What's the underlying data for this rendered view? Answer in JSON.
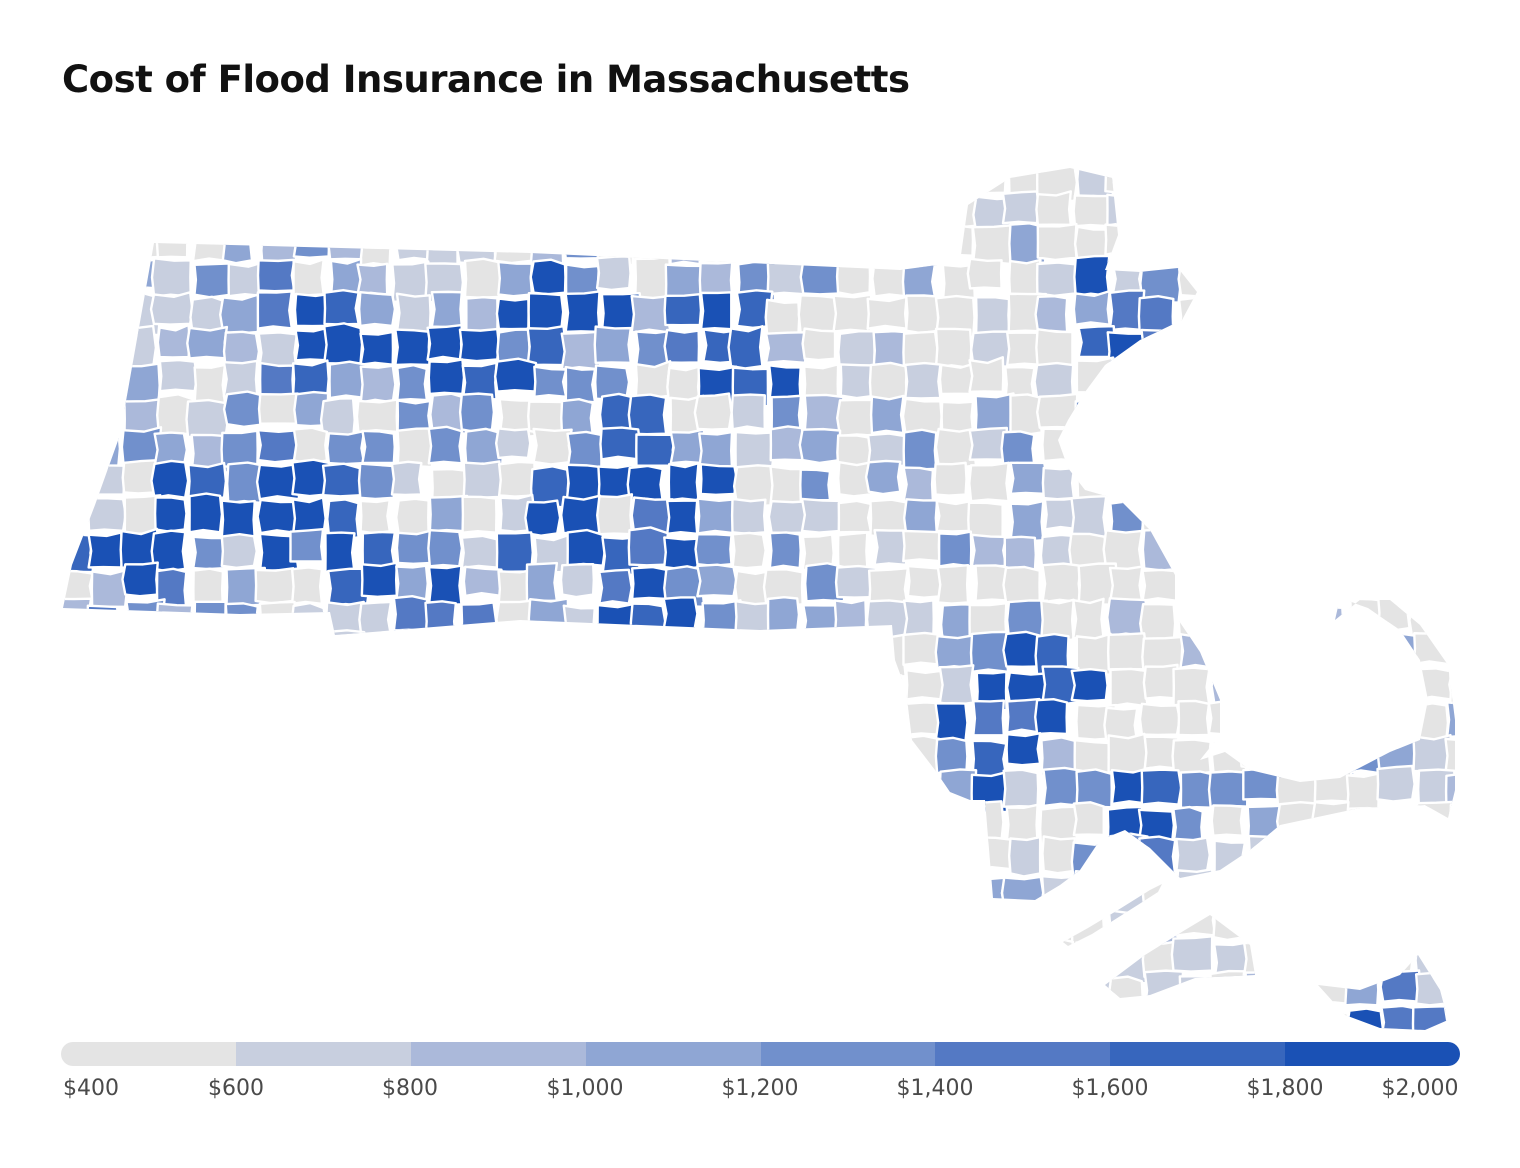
{
  "title": "Cost of Flood Insurance in Massachusetts",
  "map": {
    "region": "Massachusetts",
    "unit_level": "town",
    "color_scale": [
      {
        "min": 400,
        "max": 600,
        "color": "#e4e4e4"
      },
      {
        "min": 600,
        "max": 800,
        "color": "#c8cfdf"
      },
      {
        "min": 800,
        "max": 1000,
        "color": "#abb9da"
      },
      {
        "min": 1000,
        "max": 1200,
        "color": "#8fa6d4"
      },
      {
        "min": 1200,
        "max": 1400,
        "color": "#7190cc"
      },
      {
        "min": 1400,
        "max": 1600,
        "color": "#5479c4"
      },
      {
        "min": 1600,
        "max": 1800,
        "color": "#3766bd"
      },
      {
        "min": 1800,
        "max": 2000,
        "color": "#1a51b5"
      }
    ]
  },
  "legend": {
    "tick_labels": [
      "$400",
      "$600",
      "$800",
      "$1,000",
      "$1,200",
      "$1,400",
      "$1,600",
      "$1,800",
      "$2,000"
    ]
  }
}
